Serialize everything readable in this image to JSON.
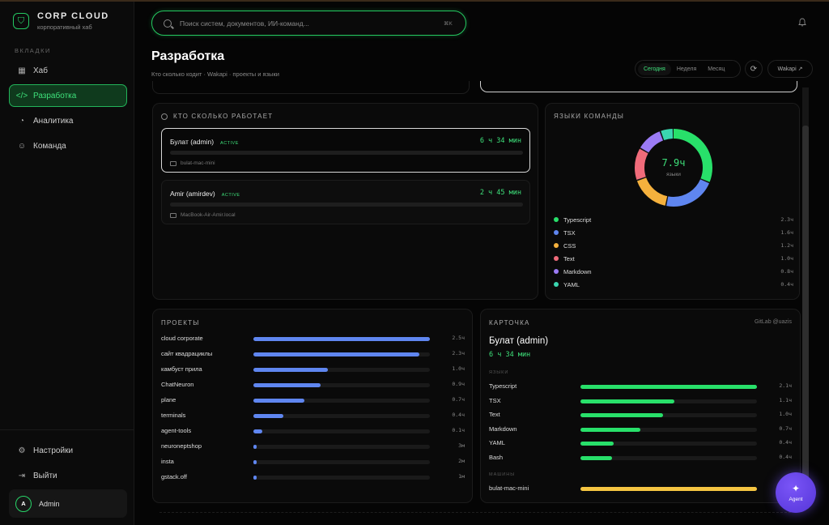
{
  "brand": {
    "title": "CORP CLOUD",
    "subtitle": "корпоративный хаб"
  },
  "sidebar": {
    "section_label": "ВКЛАДКИ",
    "items": [
      {
        "label": "Хаб",
        "icon": "grid-icon"
      },
      {
        "label": "Разработка",
        "icon": "code-icon",
        "active": true
      },
      {
        "label": "Аналитика",
        "icon": "pie-chart-icon"
      },
      {
        "label": "Команда",
        "icon": "users-icon"
      }
    ],
    "bottom_items": [
      {
        "label": "Настройки",
        "icon": "gear-icon"
      },
      {
        "label": "Выйти",
        "icon": "logout-icon"
      }
    ],
    "user": {
      "initial": "A",
      "name": "Admin"
    }
  },
  "search": {
    "placeholder": "Поиск систем, документов, ИИ-команд...",
    "shortcut": "⌘K"
  },
  "page": {
    "title": "Разработка",
    "subtitle": "Кто сколько кодит · Wakapi · проекты и языки"
  },
  "period": {
    "options": [
      "Сегодня",
      "Неделя",
      "Месяц"
    ],
    "active": "Сегодня"
  },
  "wakapi_button": "Wakapi ↗",
  "workers_card": {
    "title": "КТО СКОЛЬКО РАБОТАЕТ",
    "workers": [
      {
        "name": "Булат (admin)",
        "badge": "ACTIVE",
        "time": "6 ч 34 мин",
        "machine": "bulat-mac-mini",
        "selected": true
      },
      {
        "name": "Amir (amirdev)",
        "badge": "ACTIVE",
        "time": "2 ч 45 мин",
        "machine": "MacBook-Air-Amir.local",
        "selected": false
      }
    ]
  },
  "languages_card": {
    "title": "ЯЗЫКИ КОМАНДЫ",
    "total": "7.9ч",
    "total_label": "языки",
    "items": [
      {
        "name": "Typescript",
        "value": "2.3ч",
        "hours": 2.3,
        "color": "#28e06a"
      },
      {
        "name": "TSX",
        "value": "1.6ч",
        "hours": 1.6,
        "color": "#5f86f0"
      },
      {
        "name": "CSS",
        "value": "1.2ч",
        "hours": 1.2,
        "color": "#f5b13d"
      },
      {
        "name": "Text",
        "value": "1.0ч",
        "hours": 1.0,
        "color": "#f06b7a"
      },
      {
        "name": "Markdown",
        "value": "0.8ч",
        "hours": 0.8,
        "color": "#9b7bf5"
      },
      {
        "name": "YAML",
        "value": "0.4ч",
        "hours": 0.4,
        "color": "#3ad6b0"
      }
    ]
  },
  "projects_card": {
    "title": "ПРОЕКТЫ",
    "items": [
      {
        "name": "cloud corporate",
        "value": "2.5ч",
        "fraction": 1.0
      },
      {
        "name": "сайт квадрациклы",
        "value": "2.3ч",
        "fraction": 0.94
      },
      {
        "name": "камбуст прила",
        "value": "1.0ч",
        "fraction": 0.42
      },
      {
        "name": "ChatNeuron",
        "value": "0.9ч",
        "fraction": 0.38
      },
      {
        "name": "plane",
        "value": "0.7ч",
        "fraction": 0.29
      },
      {
        "name": "terminals",
        "value": "0.4ч",
        "fraction": 0.17
      },
      {
        "name": "agent-tools",
        "value": "0.1ч",
        "fraction": 0.05
      },
      {
        "name": "neuroneptshop",
        "value": "3м",
        "fraction": 0.02
      },
      {
        "name": "insta",
        "value": "2м",
        "fraction": 0.015
      },
      {
        "name": "gstack.off",
        "value": "1м",
        "fraction": 0.01
      }
    ]
  },
  "profile_card": {
    "title": "КАРТОЧКА",
    "gitlab": "GitLab @uazis",
    "name": "Булат (admin)",
    "time": "6 ч 34 мин",
    "languages_label": "ЯЗЫКИ",
    "languages": [
      {
        "name": "Typescript",
        "value": "2.1ч",
        "fraction": 1.0
      },
      {
        "name": "TSX",
        "value": "1.1ч",
        "fraction": 0.53
      },
      {
        "name": "Text",
        "value": "1.0ч",
        "fraction": 0.47
      },
      {
        "name": "Markdown",
        "value": "0.7ч",
        "fraction": 0.34
      },
      {
        "name": "YAML",
        "value": "0.4ч",
        "fraction": 0.19
      },
      {
        "name": "Bash",
        "value": "0.4ч",
        "fraction": 0.18
      }
    ],
    "machines_label": "МАШИНЫ",
    "machines": [
      {
        "name": "bulat-mac-mini",
        "fraction": 1.0,
        "color": "#f5c542"
      }
    ]
  },
  "agent": {
    "label": "Agent"
  }
}
